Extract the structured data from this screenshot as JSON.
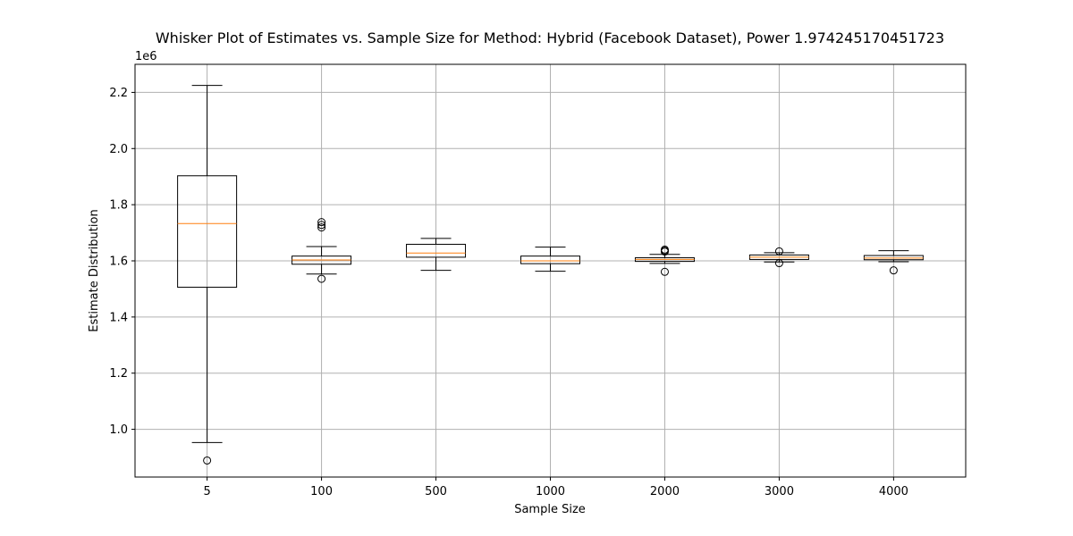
{
  "chart_data": {
    "type": "box",
    "title": "Whisker Plot of Estimates vs. Sample Size for Method: Hybrid (Facebook Dataset), Power 1.974245170451723",
    "xlabel": "Sample Size",
    "ylabel": "Estimate Distribution",
    "y_offset_label": "1e6",
    "ylim": [
      0.83,
      2.3
    ],
    "yticks": [
      1.0,
      1.2,
      1.4,
      1.6,
      1.8,
      2.0,
      2.2
    ],
    "ytick_labels": [
      "1.0",
      "1.2",
      "1.4",
      "1.6",
      "1.8",
      "2.0",
      "2.2"
    ],
    "grid": true,
    "categories": [
      "5",
      "100",
      "500",
      "1000",
      "2000",
      "3000",
      "4000"
    ],
    "boxes": [
      {
        "category": "5",
        "whisker_low": 0.953,
        "q1": 1.506,
        "median": 1.733,
        "q3": 1.903,
        "whisker_high": 2.225,
        "outliers": [
          0.889
        ]
      },
      {
        "category": "100",
        "whisker_low": 1.553,
        "q1": 1.588,
        "median": 1.603,
        "q3": 1.617,
        "whisker_high": 1.651,
        "outliers": [
          1.719,
          1.728,
          1.738,
          1.536
        ]
      },
      {
        "category": "500",
        "whisker_low": 1.566,
        "q1": 1.613,
        "median": 1.628,
        "q3": 1.659,
        "whisker_high": 1.68,
        "outliers": []
      },
      {
        "category": "1000",
        "whisker_low": 1.563,
        "q1": 1.59,
        "median": 1.6,
        "q3": 1.617,
        "whisker_high": 1.649,
        "outliers": []
      },
      {
        "category": "2000",
        "whisker_low": 1.591,
        "q1": 1.598,
        "median": 1.605,
        "q3": 1.611,
        "whisker_high": 1.623,
        "outliers": [
          1.633,
          1.636,
          1.64,
          1.561
        ]
      },
      {
        "category": "3000",
        "whisker_low": 1.596,
        "q1": 1.605,
        "median": 1.613,
        "q3": 1.621,
        "whisker_high": 1.629,
        "outliers": [
          1.634,
          1.592
        ]
      },
      {
        "category": "4000",
        "whisker_low": 1.597,
        "q1": 1.604,
        "median": 1.61,
        "q3": 1.619,
        "whisker_high": 1.636,
        "outliers": [
          1.566
        ]
      }
    ],
    "colors": {
      "box": "#000000",
      "median": "#ff7f0e",
      "grid": "#b0b0b0"
    }
  }
}
